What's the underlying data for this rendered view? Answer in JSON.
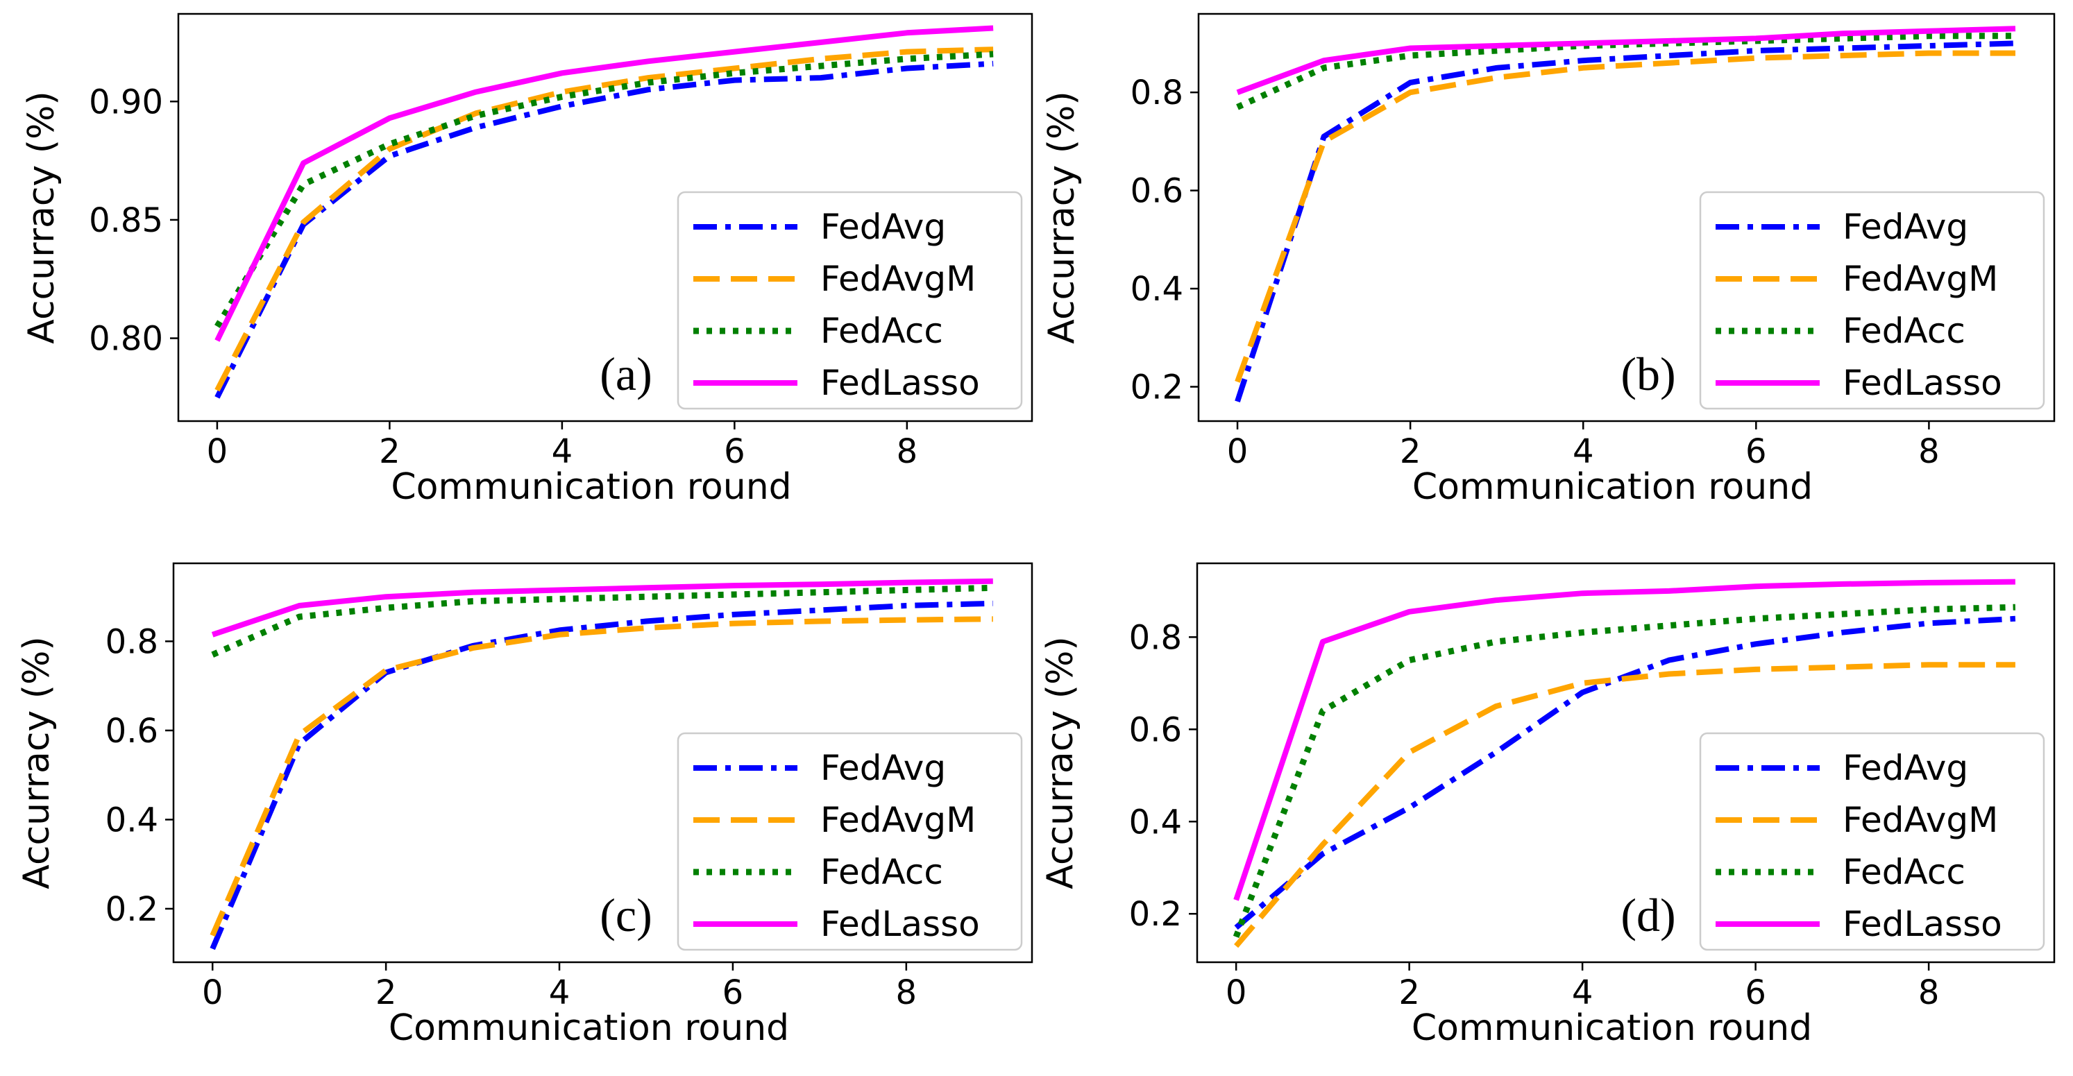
{
  "colors": {
    "FedAvg": "#0000ff",
    "FedAvgM": "#ffa500",
    "FedAcc": "#008000",
    "FedLasso": "#ff00ff"
  },
  "chart_data": [
    {
      "type": "line",
      "panel_label": "(a)",
      "xlabel": "Communication round",
      "ylabel": "Accurracy (%)",
      "xlim": [
        -0.45,
        9.45
      ],
      "ylim": [
        0.765,
        0.937
      ],
      "xticks": [
        0,
        2,
        4,
        6,
        8
      ],
      "xtick_labels": [
        "0",
        "2",
        "4",
        "6",
        "8"
      ],
      "yticks": [
        0.8,
        0.85,
        0.9
      ],
      "ytick_labels": [
        "0.80",
        "0.85",
        "0.90"
      ],
      "legend_position": "lower-right",
      "x": [
        0,
        1,
        2,
        3,
        4,
        5,
        6,
        7,
        8,
        9
      ],
      "series": [
        {
          "name": "FedAvg",
          "style": "dashdot",
          "values": [
            0.775,
            0.848,
            0.877,
            0.889,
            0.898,
            0.905,
            0.909,
            0.91,
            0.914,
            0.916
          ]
        },
        {
          "name": "FedAvgM",
          "style": "dashed",
          "values": [
            0.778,
            0.849,
            0.88,
            0.895,
            0.904,
            0.91,
            0.914,
            0.918,
            0.921,
            0.922
          ]
        },
        {
          "name": "FedAcc",
          "style": "dotted",
          "values": [
            0.805,
            0.865,
            0.882,
            0.894,
            0.902,
            0.908,
            0.912,
            0.915,
            0.918,
            0.92
          ]
        },
        {
          "name": "FedLasso",
          "style": "solid",
          "values": [
            0.799,
            0.874,
            0.893,
            0.904,
            0.912,
            0.917,
            0.921,
            0.925,
            0.929,
            0.931
          ]
        }
      ]
    },
    {
      "type": "line",
      "panel_label": "(b)",
      "xlabel": "Communication round",
      "ylabel": "Accurracy (%)",
      "xlim": [
        -0.45,
        9.45
      ],
      "ylim": [
        0.13,
        0.96
      ],
      "xticks": [
        0,
        2,
        4,
        6,
        8
      ],
      "xtick_labels": [
        "0",
        "2",
        "4",
        "6",
        "8"
      ],
      "yticks": [
        0.2,
        0.4,
        0.6,
        0.8
      ],
      "ytick_labels": [
        "0.2",
        "0.4",
        "0.6",
        "0.8"
      ],
      "legend_position": "lower-right",
      "x": [
        0,
        1,
        2,
        3,
        4,
        5,
        6,
        7,
        8,
        9
      ],
      "series": [
        {
          "name": "FedAvg",
          "style": "dashdot",
          "values": [
            0.17,
            0.71,
            0.82,
            0.85,
            0.865,
            0.875,
            0.885,
            0.89,
            0.895,
            0.9
          ]
        },
        {
          "name": "FedAvgM",
          "style": "dashed",
          "values": [
            0.21,
            0.7,
            0.8,
            0.83,
            0.85,
            0.86,
            0.87,
            0.875,
            0.88,
            0.88
          ]
        },
        {
          "name": "FedAcc",
          "style": "dotted",
          "values": [
            0.77,
            0.85,
            0.875,
            0.885,
            0.895,
            0.9,
            0.905,
            0.91,
            0.915,
            0.915
          ]
        },
        {
          "name": "FedLasso",
          "style": "solid",
          "values": [
            0.8,
            0.865,
            0.89,
            0.895,
            0.9,
            0.905,
            0.91,
            0.92,
            0.925,
            0.93
          ]
        }
      ]
    },
    {
      "type": "line",
      "panel_label": "(c)",
      "xlabel": "Communication round",
      "ylabel": "Accurracy (%)",
      "xlim": [
        -0.45,
        9.45
      ],
      "ylim": [
        0.08,
        0.975
      ],
      "xticks": [
        0,
        2,
        4,
        6,
        8
      ],
      "xtick_labels": [
        "0",
        "2",
        "4",
        "6",
        "8"
      ],
      "yticks": [
        0.2,
        0.4,
        0.6,
        0.8
      ],
      "ytick_labels": [
        "0.2",
        "0.4",
        "0.6",
        "0.8"
      ],
      "legend_position": "lower-right",
      "x": [
        0,
        1,
        2,
        3,
        4,
        5,
        6,
        7,
        8,
        9
      ],
      "series": [
        {
          "name": "FedAvg",
          "style": "dashdot",
          "values": [
            0.11,
            0.57,
            0.73,
            0.79,
            0.825,
            0.845,
            0.86,
            0.87,
            0.88,
            0.885
          ]
        },
        {
          "name": "FedAvgM",
          "style": "dashed",
          "values": [
            0.14,
            0.59,
            0.735,
            0.785,
            0.815,
            0.83,
            0.84,
            0.845,
            0.848,
            0.85
          ]
        },
        {
          "name": "FedAcc",
          "style": "dotted",
          "values": [
            0.77,
            0.855,
            0.875,
            0.89,
            0.895,
            0.9,
            0.905,
            0.91,
            0.915,
            0.92
          ]
        },
        {
          "name": "FedLasso",
          "style": "solid",
          "values": [
            0.815,
            0.88,
            0.9,
            0.91,
            0.915,
            0.92,
            0.925,
            0.928,
            0.932,
            0.935
          ]
        }
      ]
    },
    {
      "type": "line",
      "panel_label": "(d)",
      "xlabel": "Communication round",
      "ylabel": "Accurracy (%)",
      "xlim": [
        -0.45,
        9.45
      ],
      "ylim": [
        0.095,
        0.96
      ],
      "xticks": [
        0,
        2,
        4,
        6,
        8
      ],
      "xtick_labels": [
        "0",
        "2",
        "4",
        "6",
        "8"
      ],
      "yticks": [
        0.2,
        0.4,
        0.6,
        0.8
      ],
      "ytick_labels": [
        "0.2",
        "0.4",
        "0.6",
        "0.8"
      ],
      "legend_position": "lower-right",
      "x": [
        0,
        1,
        2,
        3,
        4,
        5,
        6,
        7,
        8,
        9
      ],
      "series": [
        {
          "name": "FedAvg",
          "style": "dashdot",
          "values": [
            0.17,
            0.33,
            0.43,
            0.55,
            0.68,
            0.75,
            0.785,
            0.81,
            0.83,
            0.84
          ]
        },
        {
          "name": "FedAvgM",
          "style": "dashed",
          "values": [
            0.13,
            0.35,
            0.55,
            0.65,
            0.7,
            0.72,
            0.73,
            0.735,
            0.74,
            0.74
          ]
        },
        {
          "name": "FedAcc",
          "style": "dotted",
          "values": [
            0.15,
            0.64,
            0.75,
            0.79,
            0.81,
            0.825,
            0.84,
            0.85,
            0.86,
            0.865
          ]
        },
        {
          "name": "FedLasso",
          "style": "solid",
          "values": [
            0.23,
            0.79,
            0.855,
            0.88,
            0.895,
            0.9,
            0.91,
            0.915,
            0.918,
            0.92
          ]
        }
      ]
    }
  ]
}
